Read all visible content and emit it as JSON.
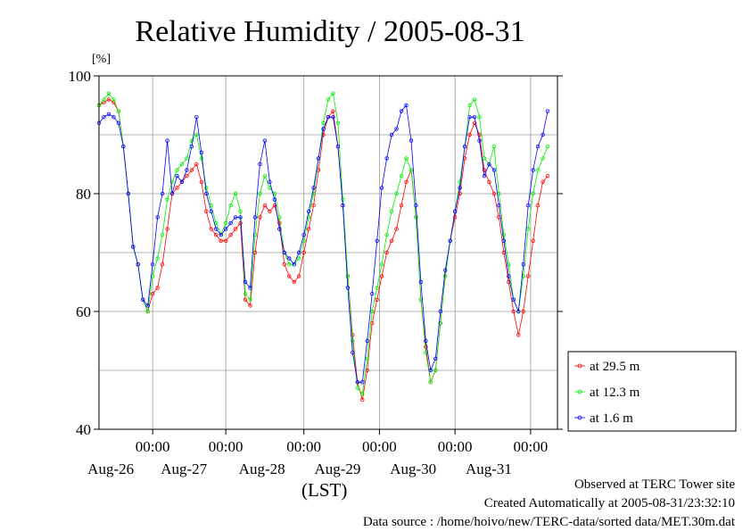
{
  "chart_data": {
    "type": "line",
    "title": "Relative Humidity / 2005-08-31",
    "ylabel": "[%]",
    "xlabel": "(LST)",
    "ylim": [
      40,
      100
    ],
    "yticks": [
      40,
      60,
      80,
      100
    ],
    "xlim_hours": [
      -22,
      166
    ],
    "x_major_ticks": [
      {
        "hour": 0,
        "time": "00:00",
        "date": "Aug-26"
      },
      {
        "hour": 30,
        "time": "00:00",
        "date": "Aug-27"
      },
      {
        "hour": 62,
        "time": "00:00",
        "date": "Aug-28"
      },
      {
        "hour": 93,
        "time": "00:00",
        "date": "Aug-29"
      },
      {
        "hour": 124,
        "time": "00:00",
        "date": "Aug-30"
      },
      {
        "hour": 155,
        "time": "00:00",
        "date": "Aug-31"
      }
    ],
    "grid": true,
    "legend_position": "right",
    "series": [
      {
        "name": "at 29.5 m",
        "color": "#ff0000",
        "points": [
          [
            -22,
            95
          ],
          [
            -20,
            95.5
          ],
          [
            -18,
            96
          ],
          [
            -16,
            95.5
          ],
          [
            -14,
            94
          ],
          [
            -12,
            88
          ],
          [
            -10,
            80
          ],
          [
            -8,
            71
          ],
          [
            -6,
            68
          ],
          [
            -4,
            62
          ],
          [
            -2,
            60
          ],
          [
            0,
            63
          ],
          [
            2,
            64
          ],
          [
            4,
            68
          ],
          [
            6,
            74
          ],
          [
            8,
            80
          ],
          [
            10,
            81
          ],
          [
            12,
            82
          ],
          [
            14,
            83
          ],
          [
            16,
            84
          ],
          [
            18,
            85
          ],
          [
            20,
            82
          ],
          [
            22,
            77
          ],
          [
            24,
            74
          ],
          [
            26,
            73
          ],
          [
            28,
            72
          ],
          [
            30,
            72
          ],
          [
            32,
            73
          ],
          [
            34,
            74
          ],
          [
            36,
            75
          ],
          [
            38,
            62
          ],
          [
            40,
            61
          ],
          [
            42,
            70
          ],
          [
            44,
            76
          ],
          [
            46,
            78
          ],
          [
            48,
            77
          ],
          [
            50,
            78
          ],
          [
            52,
            75
          ],
          [
            54,
            68
          ],
          [
            56,
            66
          ],
          [
            58,
            65
          ],
          [
            60,
            66
          ],
          [
            62,
            70
          ],
          [
            64,
            74
          ],
          [
            66,
            78
          ],
          [
            68,
            84
          ],
          [
            70,
            90
          ],
          [
            72,
            93
          ],
          [
            74,
            94
          ],
          [
            76,
            88
          ],
          [
            78,
            78
          ],
          [
            80,
            66
          ],
          [
            82,
            56
          ],
          [
            84,
            48
          ],
          [
            86,
            45
          ],
          [
            88,
            50
          ],
          [
            90,
            58
          ],
          [
            92,
            62
          ],
          [
            94,
            66
          ],
          [
            96,
            70
          ],
          [
            98,
            72
          ],
          [
            100,
            74
          ],
          [
            102,
            78
          ],
          [
            104,
            82
          ],
          [
            106,
            84
          ],
          [
            108,
            76
          ],
          [
            110,
            62
          ],
          [
            112,
            54
          ],
          [
            114,
            48
          ],
          [
            116,
            50
          ],
          [
            118,
            58
          ],
          [
            120,
            66
          ],
          [
            122,
            72
          ],
          [
            124,
            76
          ],
          [
            126,
            80
          ],
          [
            128,
            86
          ],
          [
            130,
            90
          ],
          [
            132,
            92
          ],
          [
            134,
            90
          ],
          [
            136,
            84
          ],
          [
            138,
            82
          ],
          [
            140,
            80
          ],
          [
            142,
            76
          ],
          [
            144,
            70
          ],
          [
            146,
            65
          ],
          [
            148,
            60
          ],
          [
            150,
            56
          ],
          [
            152,
            60
          ],
          [
            154,
            66
          ],
          [
            156,
            72
          ],
          [
            158,
            78
          ],
          [
            160,
            82
          ],
          [
            162,
            83
          ]
        ]
      },
      {
        "name": "at 12.3 m",
        "color": "#00ee00",
        "points": [
          [
            -22,
            95
          ],
          [
            -20,
            96
          ],
          [
            -18,
            97
          ],
          [
            -16,
            96
          ],
          [
            -14,
            94
          ],
          [
            -12,
            88
          ],
          [
            -10,
            80
          ],
          [
            -8,
            71
          ],
          [
            -6,
            68
          ],
          [
            -4,
            62
          ],
          [
            -2,
            60
          ],
          [
            0,
            66
          ],
          [
            2,
            69
          ],
          [
            4,
            73
          ],
          [
            6,
            79
          ],
          [
            8,
            82
          ],
          [
            10,
            84
          ],
          [
            12,
            85
          ],
          [
            14,
            86
          ],
          [
            16,
            89
          ],
          [
            18,
            90
          ],
          [
            20,
            86
          ],
          [
            22,
            81
          ],
          [
            24,
            78
          ],
          [
            26,
            75
          ],
          [
            28,
            73
          ],
          [
            30,
            75
          ],
          [
            32,
            78
          ],
          [
            34,
            80
          ],
          [
            36,
            77
          ],
          [
            38,
            63
          ],
          [
            40,
            62
          ],
          [
            42,
            73
          ],
          [
            44,
            80
          ],
          [
            46,
            83
          ],
          [
            48,
            81
          ],
          [
            50,
            80
          ],
          [
            52,
            76
          ],
          [
            54,
            70
          ],
          [
            56,
            68
          ],
          [
            58,
            68
          ],
          [
            60,
            69
          ],
          [
            62,
            72
          ],
          [
            64,
            76
          ],
          [
            66,
            80
          ],
          [
            68,
            86
          ],
          [
            70,
            92
          ],
          [
            72,
            96
          ],
          [
            74,
            97
          ],
          [
            76,
            92
          ],
          [
            78,
            79
          ],
          [
            80,
            66
          ],
          [
            82,
            55
          ],
          [
            84,
            47
          ],
          [
            86,
            46
          ],
          [
            88,
            52
          ],
          [
            90,
            60
          ],
          [
            92,
            64
          ],
          [
            94,
            68
          ],
          [
            96,
            73
          ],
          [
            98,
            77
          ],
          [
            100,
            80
          ],
          [
            102,
            83
          ],
          [
            104,
            86
          ],
          [
            106,
            84
          ],
          [
            108,
            76
          ],
          [
            110,
            62
          ],
          [
            112,
            53
          ],
          [
            114,
            48
          ],
          [
            116,
            50
          ],
          [
            118,
            58
          ],
          [
            120,
            66
          ],
          [
            122,
            72
          ],
          [
            124,
            77
          ],
          [
            126,
            82
          ],
          [
            128,
            88
          ],
          [
            130,
            95
          ],
          [
            132,
            96
          ],
          [
            134,
            93
          ],
          [
            136,
            86
          ],
          [
            138,
            85
          ],
          [
            140,
            88
          ],
          [
            142,
            80
          ],
          [
            144,
            73
          ],
          [
            146,
            68
          ],
          [
            148,
            62
          ],
          [
            150,
            60
          ],
          [
            152,
            66
          ],
          [
            154,
            74
          ],
          [
            156,
            80
          ],
          [
            158,
            84
          ],
          [
            160,
            86
          ],
          [
            162,
            88
          ]
        ]
      },
      {
        "name": "at 1.6 m",
        "color": "#0000ff",
        "points": [
          [
            -22,
            92
          ],
          [
            -20,
            93
          ],
          [
            -18,
            93.5
          ],
          [
            -16,
            93
          ],
          [
            -14,
            92
          ],
          [
            -12,
            88
          ],
          [
            -10,
            80
          ],
          [
            -8,
            71
          ],
          [
            -6,
            68
          ],
          [
            -4,
            62
          ],
          [
            -2,
            61
          ],
          [
            0,
            68
          ],
          [
            2,
            76
          ],
          [
            4,
            80
          ],
          [
            6,
            89
          ],
          [
            8,
            80
          ],
          [
            10,
            83
          ],
          [
            12,
            82
          ],
          [
            14,
            84
          ],
          [
            16,
            88
          ],
          [
            18,
            93
          ],
          [
            20,
            87
          ],
          [
            22,
            80
          ],
          [
            24,
            77
          ],
          [
            26,
            74
          ],
          [
            28,
            73
          ],
          [
            30,
            74
          ],
          [
            32,
            75
          ],
          [
            34,
            76
          ],
          [
            36,
            76
          ],
          [
            38,
            65
          ],
          [
            40,
            64
          ],
          [
            42,
            76
          ],
          [
            44,
            85
          ],
          [
            46,
            89
          ],
          [
            48,
            82
          ],
          [
            50,
            79
          ],
          [
            52,
            74
          ],
          [
            54,
            70
          ],
          [
            56,
            69
          ],
          [
            58,
            68
          ],
          [
            60,
            70
          ],
          [
            62,
            73
          ],
          [
            64,
            77
          ],
          [
            66,
            81
          ],
          [
            68,
            86
          ],
          [
            70,
            91
          ],
          [
            72,
            93
          ],
          [
            74,
            93
          ],
          [
            76,
            88
          ],
          [
            78,
            78
          ],
          [
            80,
            64
          ],
          [
            82,
            53
          ],
          [
            84,
            48
          ],
          [
            86,
            48
          ],
          [
            88,
            55
          ],
          [
            90,
            63
          ],
          [
            92,
            72
          ],
          [
            94,
            81
          ],
          [
            96,
            86
          ],
          [
            98,
            90
          ],
          [
            100,
            91
          ],
          [
            102,
            94
          ],
          [
            104,
            95
          ],
          [
            106,
            89
          ],
          [
            108,
            78
          ],
          [
            110,
            65
          ],
          [
            112,
            55
          ],
          [
            114,
            50
          ],
          [
            116,
            52
          ],
          [
            118,
            60
          ],
          [
            120,
            67
          ],
          [
            122,
            72
          ],
          [
            124,
            77
          ],
          [
            126,
            81
          ],
          [
            128,
            88
          ],
          [
            130,
            93
          ],
          [
            132,
            93
          ],
          [
            134,
            89
          ],
          [
            136,
            83
          ],
          [
            138,
            85
          ],
          [
            140,
            84
          ],
          [
            142,
            78
          ],
          [
            144,
            72
          ],
          [
            146,
            66
          ],
          [
            148,
            62
          ],
          [
            150,
            60
          ],
          [
            152,
            68
          ],
          [
            154,
            78
          ],
          [
            156,
            84
          ],
          [
            158,
            88
          ],
          [
            160,
            90
          ],
          [
            162,
            94
          ]
        ]
      }
    ]
  },
  "footer": {
    "line1": "Observed at TERC Tower site",
    "line2": "Created Automatically at 2005-08-31/23:32:10",
    "line3": "Data source : /home/hoivo/new/TERC-data/sorted  data/MET.30m.dat"
  }
}
